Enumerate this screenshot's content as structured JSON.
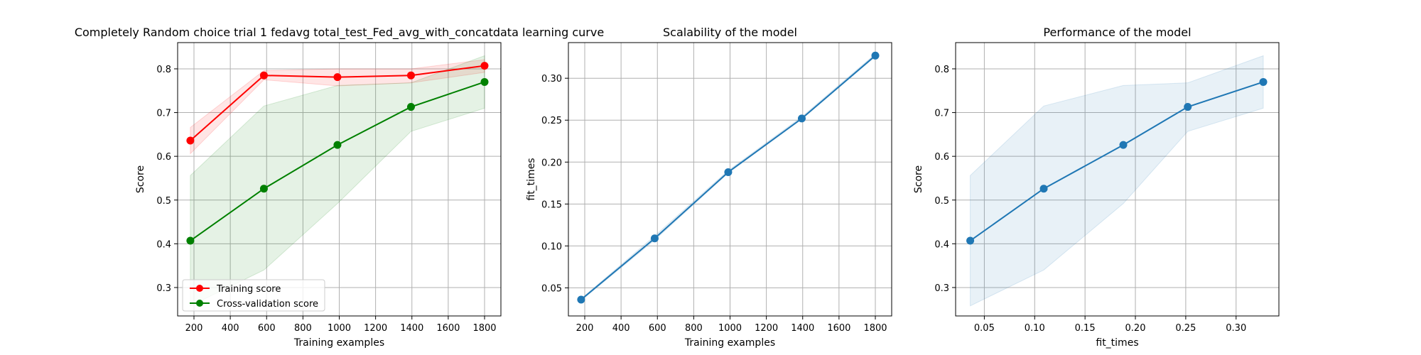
{
  "chart_data": [
    {
      "id": "learning-curve",
      "type": "line",
      "title": "Completely Random choice trial 1 fedavg total_test_Fed_avg_with_concatdata learning curve",
      "xlabel": "Training examples",
      "ylabel": "Score",
      "xlim": [
        110,
        1890
      ],
      "ylim": [
        0.235,
        0.86
      ],
      "xticks": [
        200,
        400,
        600,
        800,
        1000,
        1200,
        1400,
        1600,
        1800
      ],
      "xtick_labels": [
        "200",
        "400",
        "600",
        "800",
        "1000",
        "1200",
        "1400",
        "1600",
        "1800"
      ],
      "yticks": [
        0.3,
        0.4,
        0.5,
        0.6,
        0.7,
        0.8
      ],
      "ytick_labels": [
        "0.3",
        "0.4",
        "0.5",
        "0.6",
        "0.7",
        "0.8"
      ],
      "grid": true,
      "legend": "lower-left",
      "series": [
        {
          "name": "Training score",
          "color": "#ff0000",
          "x": [
            180,
            585,
            990,
            1395,
            1800
          ],
          "y": [
            0.636,
            0.785,
            0.781,
            0.785,
            0.807
          ],
          "band_lower": [
            0.606,
            0.775,
            0.761,
            0.768,
            0.792
          ],
          "band_upper": [
            0.666,
            0.796,
            0.8,
            0.8,
            0.821
          ]
        },
        {
          "name": "Cross-validation score",
          "color": "#008000",
          "x": [
            180,
            585,
            990,
            1395,
            1800
          ],
          "y": [
            0.407,
            0.526,
            0.626,
            0.713,
            0.77
          ],
          "band_lower": [
            0.258,
            0.34,
            0.492,
            0.657,
            0.71
          ],
          "band_upper": [
            0.556,
            0.715,
            0.762,
            0.768,
            0.83
          ]
        }
      ]
    },
    {
      "id": "scalability",
      "type": "line",
      "title": "Scalability of the model",
      "xlabel": "Training examples",
      "ylabel": "fit_times",
      "xlim": [
        110,
        1890
      ],
      "ylim": [
        0.0165,
        0.3425
      ],
      "xticks": [
        200,
        400,
        600,
        800,
        1000,
        1200,
        1400,
        1600,
        1800
      ],
      "xtick_labels": [
        "200",
        "400",
        "600",
        "800",
        "1000",
        "1200",
        "1400",
        "1600",
        "1800"
      ],
      "yticks": [
        0.05,
        0.1,
        0.15,
        0.2,
        0.25,
        0.3
      ],
      "ytick_labels": [
        "0.05",
        "0.10",
        "0.15",
        "0.20",
        "0.25",
        "0.30"
      ],
      "grid": true,
      "series": [
        {
          "color": "#1f77b4",
          "x": [
            180,
            585,
            990,
            1395,
            1800
          ],
          "y": [
            0.036,
            0.109,
            0.188,
            0.252,
            0.327
          ],
          "band_lower": [
            0.035,
            0.107,
            0.187,
            0.251,
            0.326
          ],
          "band_upper": [
            0.037,
            0.112,
            0.19,
            0.254,
            0.329
          ]
        }
      ]
    },
    {
      "id": "performance",
      "type": "line",
      "title": "Performance of the model",
      "xlabel": "fit_times",
      "ylabel": "Score",
      "xlim": [
        0.0215,
        0.3425
      ],
      "ylim": [
        0.235,
        0.86
      ],
      "xticks": [
        0.05,
        0.1,
        0.15,
        0.2,
        0.25,
        0.3
      ],
      "xtick_labels": [
        "0.05",
        "0.10",
        "0.15",
        "0.20",
        "0.25",
        "0.30"
      ],
      "yticks": [
        0.3,
        0.4,
        0.5,
        0.6,
        0.7,
        0.8
      ],
      "ytick_labels": [
        "0.3",
        "0.4",
        "0.5",
        "0.6",
        "0.7",
        "0.8"
      ],
      "grid": true,
      "series": [
        {
          "color": "#1f77b4",
          "x": [
            0.036,
            0.109,
            0.188,
            0.252,
            0.327
          ],
          "y": [
            0.407,
            0.526,
            0.626,
            0.713,
            0.77
          ],
          "band_lower": [
            0.258,
            0.34,
            0.492,
            0.657,
            0.71
          ],
          "band_upper": [
            0.556,
            0.715,
            0.762,
            0.768,
            0.83
          ]
        }
      ]
    }
  ]
}
